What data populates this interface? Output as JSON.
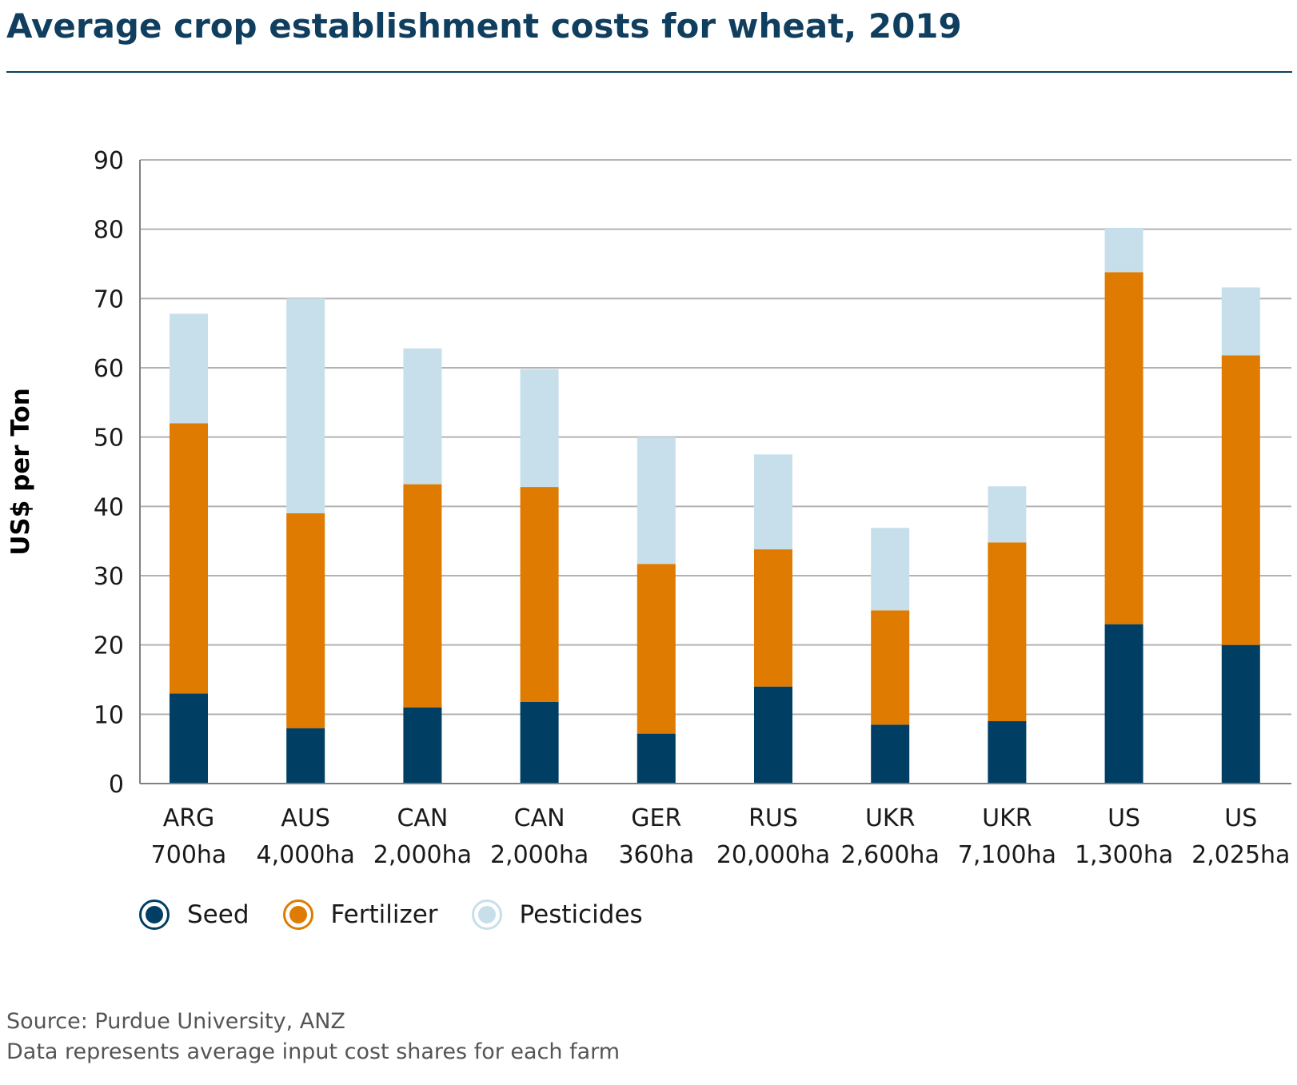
{
  "title": "Average crop establishment costs for wheat, 2019",
  "chart_data": {
    "type": "bar",
    "stacked": true,
    "title": "Average crop establishment costs for wheat, 2019",
    "xlabel": "",
    "ylabel": "US$ per Ton",
    "ylim": [
      0,
      90
    ],
    "yticks": [
      0,
      10,
      20,
      30,
      40,
      50,
      60,
      70,
      80,
      90
    ],
    "grid": true,
    "legend_position": "bottom-left",
    "categories": [
      [
        "ARG",
        "700ha"
      ],
      [
        "AUS",
        "4,000ha"
      ],
      [
        "CAN",
        "2,000ha"
      ],
      [
        "CAN",
        "2,000ha"
      ],
      [
        "GER",
        "360ha"
      ],
      [
        "RUS",
        "20,000ha"
      ],
      [
        "UKR",
        "2,600ha"
      ],
      [
        "UKR",
        "7,100ha"
      ],
      [
        "US",
        "1,300ha"
      ],
      [
        "US",
        "2,025ha"
      ]
    ],
    "series": [
      {
        "name": "Seed",
        "color": "#003f63",
        "values": [
          13,
          8,
          11,
          11.8,
          7.2,
          14,
          8.5,
          9,
          23,
          20
        ]
      },
      {
        "name": "Fertilizer",
        "color": "#df7b00",
        "values": [
          39,
          31,
          32.2,
          31,
          24.5,
          19.8,
          16.5,
          25.8,
          50.8,
          41.8
        ]
      },
      {
        "name": "Pesticides",
        "color": "#c7dfea",
        "values": [
          15.8,
          31,
          19.6,
          17,
          18.3,
          13.7,
          11.9,
          8.1,
          6.4,
          9.8
        ]
      }
    ]
  },
  "colors": {
    "title": "#0f3e5f",
    "grid": "#b3b3b3",
    "axis": "#808080",
    "text": "#1a1a1a",
    "footer": "#555555"
  },
  "footer": {
    "source": "Source: Purdue University, ANZ",
    "note": "Data represents average input cost shares for each farm"
  }
}
